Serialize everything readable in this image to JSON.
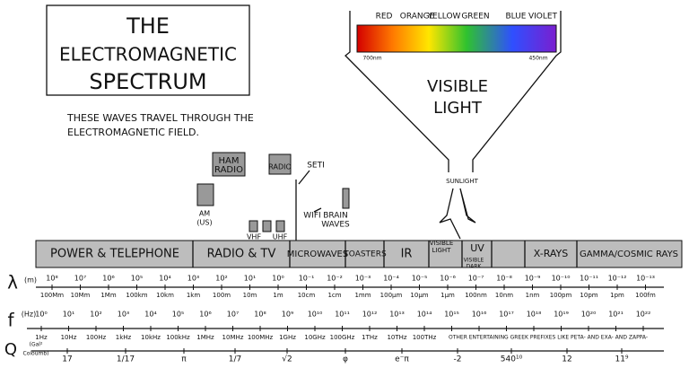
{
  "title_lines": [
    "THE",
    "ELECTROMAGNETIC",
    "SPECTRUM"
  ],
  "subtitle_lines": [
    "THESE WAVES TRAVEL THROUGH THE",
    "ELECTROMAGNETIC FIELD."
  ],
  "visible": {
    "colors": [
      "RED",
      "ORANGE",
      "YELLOW",
      "GREEN",
      "BLUE",
      "VIOLET"
    ],
    "start": "700nm",
    "end": "450nm",
    "label_lines": [
      "VISIBLE",
      "LIGHT"
    ]
  },
  "sunlight": "SUNLIGHT",
  "sources": [
    {
      "label_lines": [
        "HAM",
        "RADIO"
      ]
    },
    {
      "label_lines": [
        "RADIO"
      ]
    },
    {
      "label_lines": [
        "AM",
        "(US)"
      ]
    },
    {
      "label_lines": [
        "VHF"
      ]
    },
    {
      "label_lines": [
        "UHF"
      ]
    },
    {
      "label_lines": [
        "SETI"
      ]
    },
    {
      "label_lines": [
        "WIFI"
      ]
    },
    {
      "label_lines": [
        "BRAIN",
        "WAVES"
      ]
    }
  ],
  "bands": [
    {
      "label_lines": [
        "POWER & TELEPHONE"
      ]
    },
    {
      "label_lines": [
        "RADIO & TV"
      ]
    },
    {
      "label_lines": [
        "MICROWAVES"
      ]
    },
    {
      "label_lines": [
        "TOASTERS"
      ]
    },
    {
      "label_lines": [
        "IR"
      ]
    },
    {
      "label_lines": [
        "VISIBLE",
        "LIGHT"
      ]
    },
    {
      "label_lines": [
        "UV"
      ]
    },
    {
      "label_lines": [
        "VISIBLE",
        "DARK"
      ]
    },
    {
      "label_lines": [
        "X-RAYS"
      ]
    },
    {
      "label_lines": [
        "GAMMA/COSMIC RAYS"
      ]
    }
  ],
  "wavelength": {
    "symbol": "λ",
    "unit": "(m)",
    "powers": [
      "10⁸",
      "10⁷",
      "10⁶",
      "10⁵",
      "10⁴",
      "10³",
      "10²",
      "10¹",
      "10⁰",
      "10⁻¹",
      "10⁻²",
      "10⁻³",
      "10⁻⁴",
      "10⁻⁵",
      "10⁻⁶",
      "10⁻⁷",
      "10⁻⁸",
      "10⁻⁹",
      "10⁻¹⁰",
      "10⁻¹¹",
      "10⁻¹²",
      "10⁻¹³"
    ],
    "labels": [
      "100Mm",
      "10Mm",
      "1Mm",
      "100km",
      "10km",
      "1km",
      "100m",
      "10m",
      "1m",
      "10cm",
      "1cm",
      "1mm",
      "100μm",
      "10μm",
      "1μm",
      "100nm",
      "10nm",
      "1nm",
      "100pm",
      "10pm",
      "1pm",
      "100fm"
    ]
  },
  "frequency": {
    "symbol": "f",
    "unit": "(Hz)",
    "powers": [
      "10⁰",
      "10¹",
      "10²",
      "10³",
      "10⁴",
      "10⁵",
      "10⁶",
      "10⁷",
      "10⁸",
      "10⁹",
      "10¹⁰",
      "10¹¹",
      "10¹²",
      "10¹³",
      "10¹⁴",
      "10¹⁵",
      "10¹⁶",
      "10¹⁷",
      "10¹⁸",
      "10¹⁹",
      "10²⁰",
      "10²¹",
      "10²²"
    ],
    "labels": [
      "1Hz",
      "10Hz",
      "100Hz",
      "1kHz",
      "10kHz",
      "100kHz",
      "1MHz",
      "10MHz",
      "100MHz",
      "1GHz",
      "10GHz",
      "100GHz",
      "1THz",
      "10THz",
      "100THz"
    ],
    "note": "OTHER ENTERTAINING GREEK PREFIXES LIKE PETA- AND EXA- AND ZAPPA-"
  },
  "q": {
    "symbol": "Q",
    "unit_lines": [
      "(Gal²",
      "Coloumb)"
    ],
    "values": [
      "17",
      "1/17",
      "π",
      "1/7",
      "√2",
      "φ",
      "e⁻π",
      "-2",
      "540¹⁰",
      "12",
      "11⁹"
    ]
  }
}
